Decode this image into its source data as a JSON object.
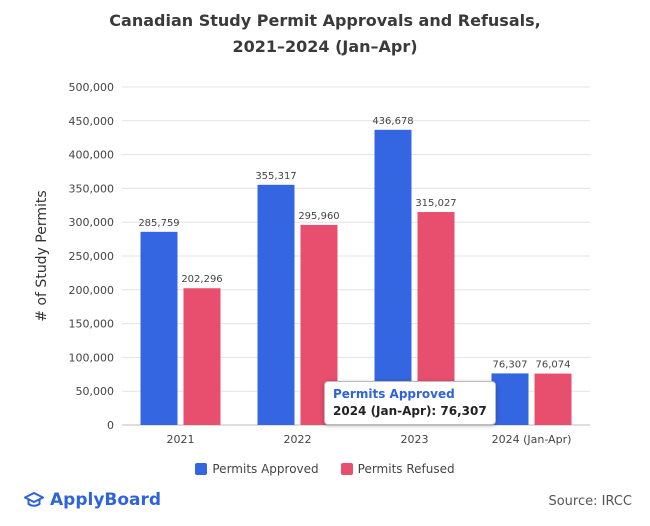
{
  "chart_data": {
    "type": "bar",
    "title_line1": "Canadian Study Permit Approvals and Refusals,",
    "title_line2": "2021–2024 (Jan–Apr)",
    "ylabel": "# of Study Permits",
    "xlabel": "",
    "categories": [
      "2021",
      "2022",
      "2023",
      "2024 (Jan-Apr)"
    ],
    "series": [
      {
        "name": "Permits Approved",
        "color": "#3366e0",
        "values": [
          285759,
          355317,
          436678,
          76307
        ],
        "labels": [
          "285,759",
          "355,317",
          "436,678",
          "76,307"
        ]
      },
      {
        "name": "Permits Refused",
        "color": "#e84e6d",
        "values": [
          202296,
          295960,
          315027,
          76074
        ],
        "labels": [
          "202,296",
          "295,960",
          "315,027",
          "76,074"
        ]
      }
    ],
    "ylim": [
      0,
      500000
    ],
    "yticks": [
      0,
      50000,
      100000,
      150000,
      200000,
      250000,
      300000,
      350000,
      400000,
      450000,
      500000
    ],
    "ytick_labels": [
      "0",
      "50,000",
      "100,000",
      "150,000",
      "200,000",
      "250,000",
      "300,000",
      "350,000",
      "400,000",
      "450,000",
      "500,000"
    ],
    "grid": true,
    "legend_position": "bottom"
  },
  "tooltip": {
    "series": "Permits Approved",
    "body": "2024 (Jan-Apr): 76,307"
  },
  "footer": {
    "brand": "ApplyBoard",
    "source": "Source: IRCC",
    "brand_color": "#2f63d8"
  }
}
